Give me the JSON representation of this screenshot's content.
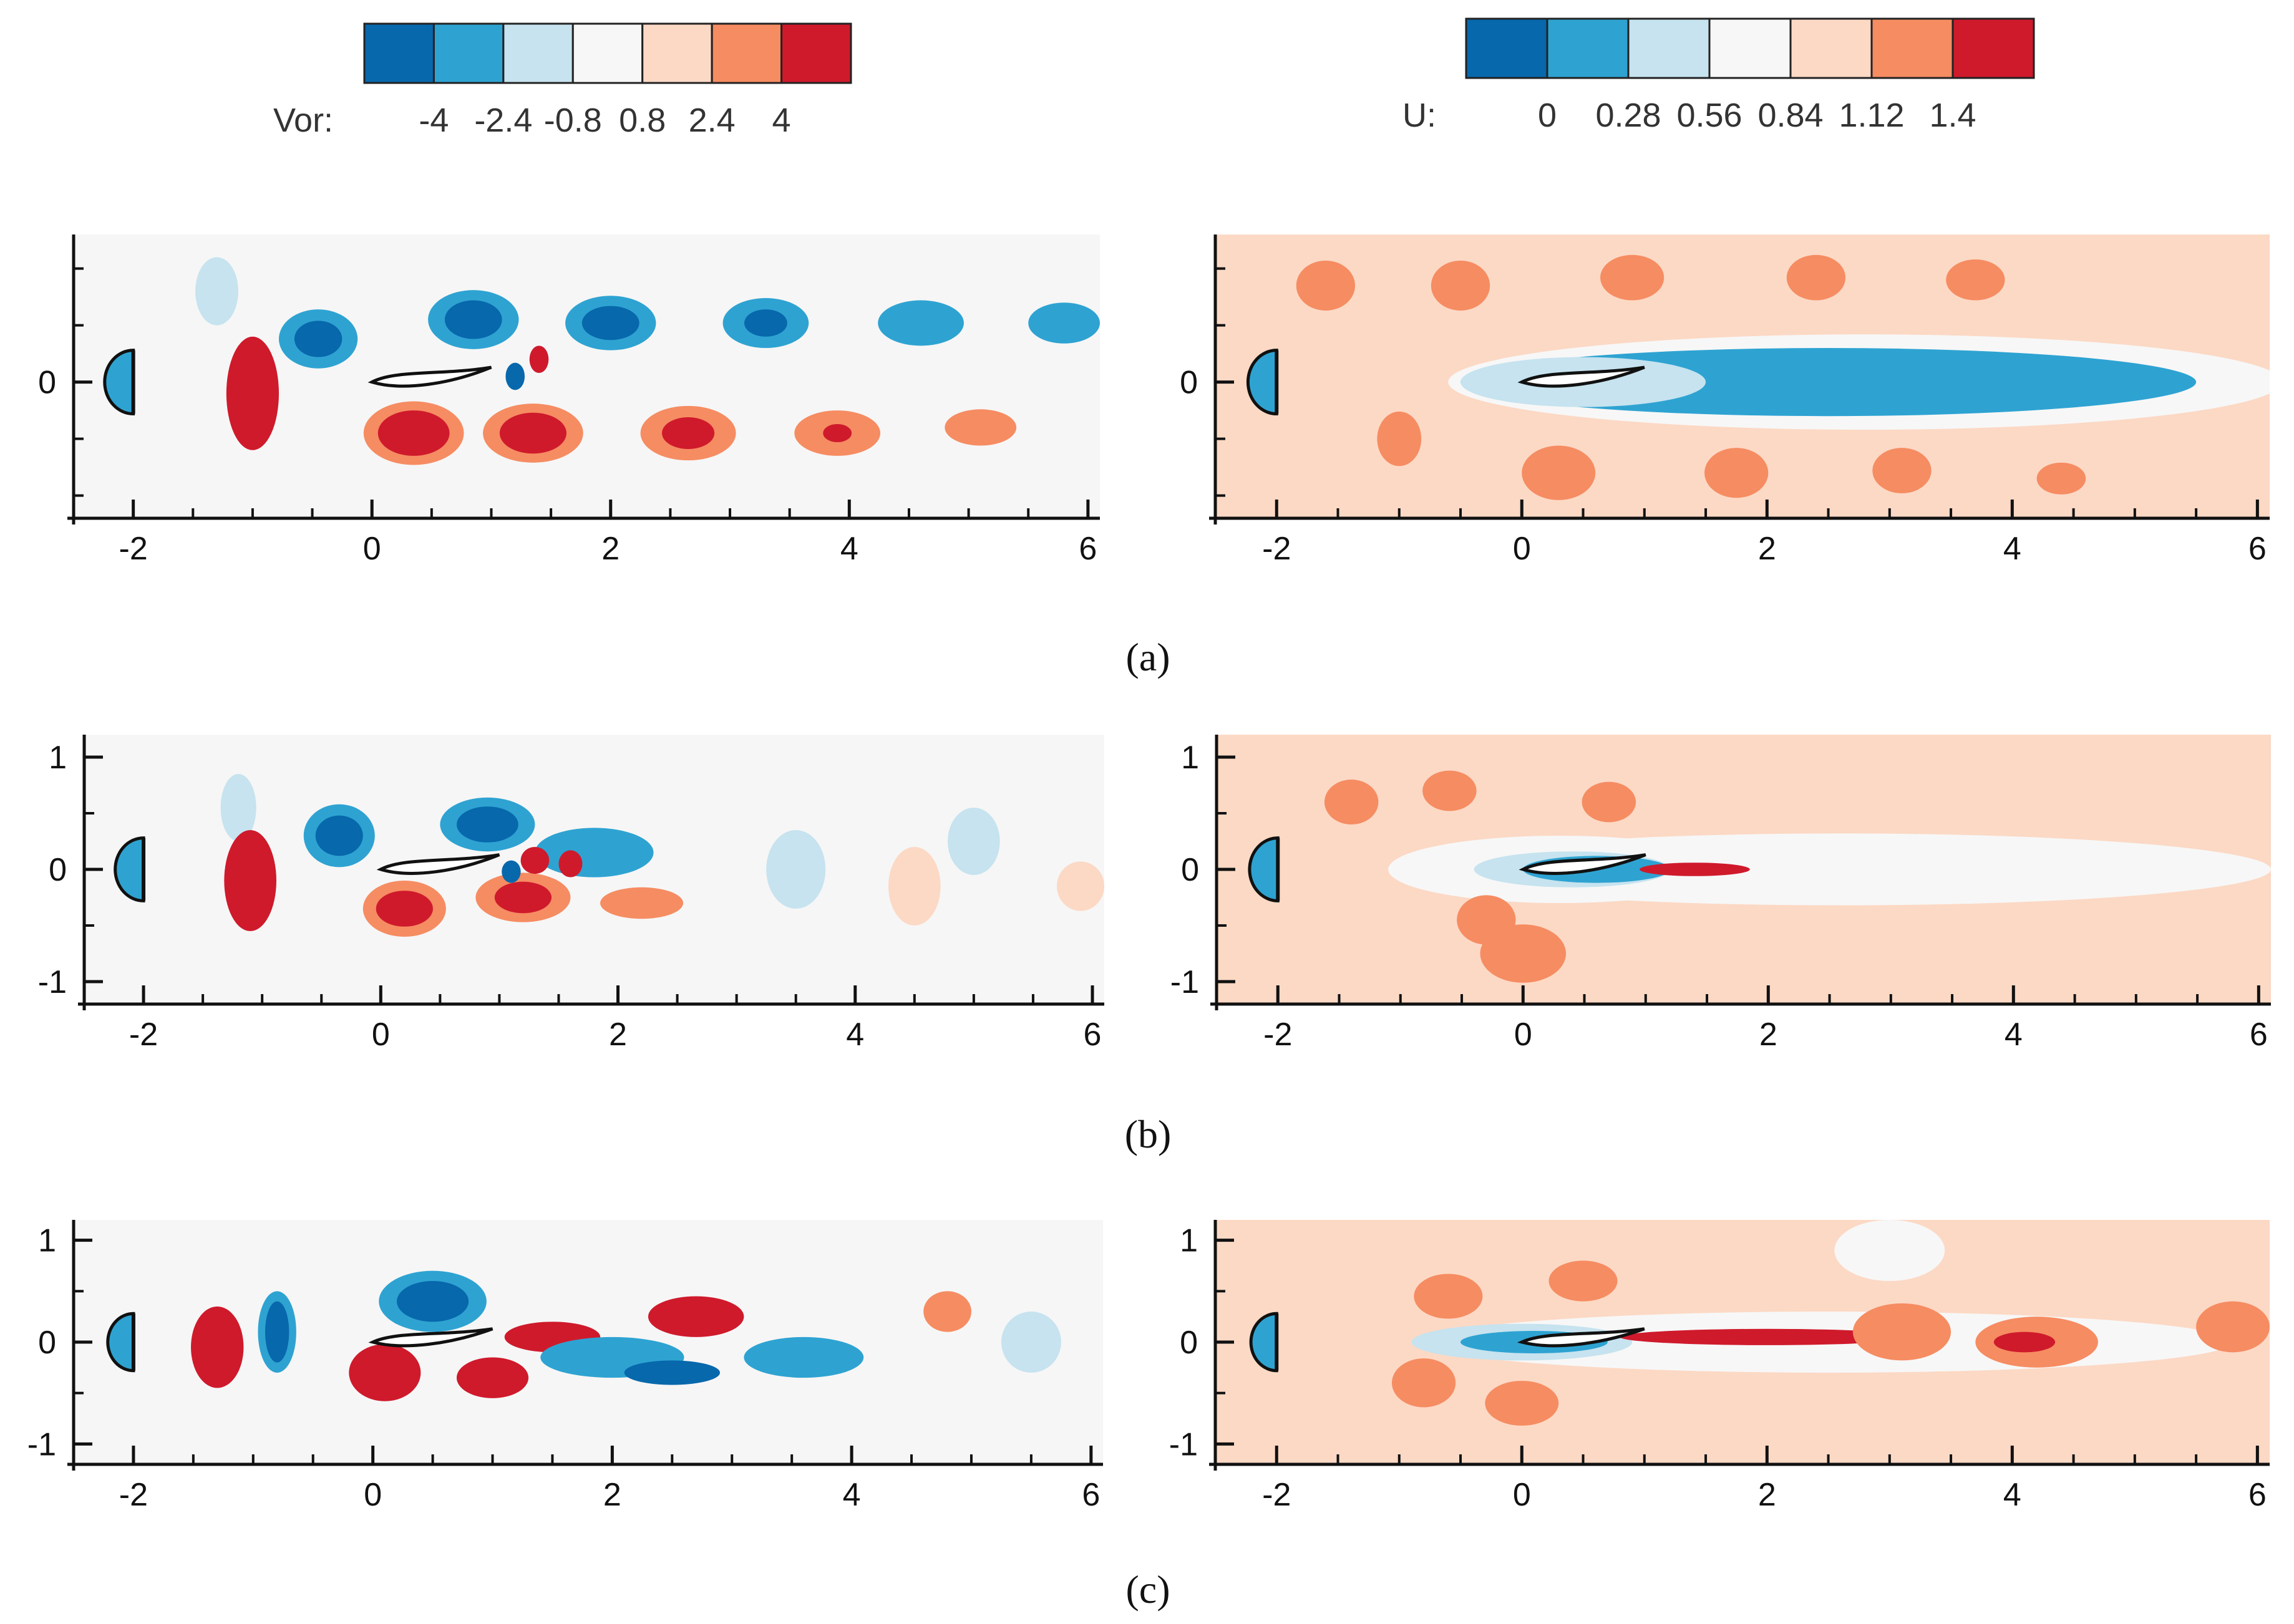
{
  "chart_data": [
    {
      "type": "heatmap",
      "id": "a-vor",
      "panel": "(a)",
      "field": "Vor",
      "xticks": [
        -2,
        0,
        2,
        4,
        6
      ],
      "yticks": [
        0
      ],
      "xlim": [
        -2.5,
        6.1
      ],
      "ylim": [
        -1.2,
        1.3
      ],
      "bg": "#f6f6f6",
      "blobs": [
        [
          -1.3,
          0.8,
          0.18,
          0.3,
          2
        ],
        [
          -0.45,
          0.38,
          0.33,
          0.26,
          1
        ],
        [
          -0.45,
          0.38,
          0.2,
          0.16,
          0
        ],
        [
          0.85,
          0.55,
          0.38,
          0.26,
          1
        ],
        [
          0.85,
          0.55,
          0.24,
          0.17,
          0
        ],
        [
          2.0,
          0.52,
          0.38,
          0.24,
          1
        ],
        [
          2.0,
          0.52,
          0.24,
          0.15,
          0
        ],
        [
          3.3,
          0.52,
          0.36,
          0.22,
          1
        ],
        [
          3.3,
          0.52,
          0.18,
          0.12,
          0
        ],
        [
          4.6,
          0.52,
          0.36,
          0.2,
          1
        ],
        [
          4.6,
          0.52,
          0.15,
          0.1,
          1
        ],
        [
          5.8,
          0.52,
          0.3,
          0.18,
          1
        ],
        [
          -1.0,
          -0.1,
          0.22,
          0.5,
          6
        ],
        [
          0.35,
          -0.45,
          0.42,
          0.28,
          5
        ],
        [
          0.35,
          -0.45,
          0.3,
          0.2,
          6
        ],
        [
          1.35,
          -0.45,
          0.42,
          0.26,
          5
        ],
        [
          1.35,
          -0.45,
          0.28,
          0.18,
          6
        ],
        [
          2.65,
          -0.45,
          0.4,
          0.24,
          5
        ],
        [
          2.65,
          -0.45,
          0.22,
          0.14,
          6
        ],
        [
          3.9,
          -0.45,
          0.36,
          0.2,
          5
        ],
        [
          3.9,
          -0.45,
          0.12,
          0.08,
          6
        ],
        [
          5.1,
          -0.4,
          0.3,
          0.16,
          5
        ],
        [
          1.4,
          0.2,
          0.08,
          0.12,
          6
        ],
        [
          1.2,
          0.05,
          0.08,
          0.12,
          0
        ]
      ]
    },
    {
      "type": "heatmap",
      "id": "a-u",
      "panel": "(a)",
      "field": "U",
      "xticks": [
        -2,
        0,
        2,
        4,
        6
      ],
      "yticks": [
        0
      ],
      "xlim": [
        -2.5,
        6.1
      ],
      "ylim": [
        -1.2,
        1.3
      ],
      "bg": "#fcd9c5",
      "blobs": [
        [
          2.8,
          0.0,
          3.4,
          0.42,
          3
        ],
        [
          2.5,
          0.0,
          3.0,
          0.3,
          1
        ],
        [
          0.5,
          0.0,
          1.0,
          0.22,
          2
        ],
        [
          -1.6,
          0.85,
          0.24,
          0.22,
          5
        ],
        [
          -0.5,
          0.85,
          0.24,
          0.22,
          5
        ],
        [
          0.9,
          0.92,
          0.26,
          0.2,
          5
        ],
        [
          2.4,
          0.92,
          0.24,
          0.2,
          5
        ],
        [
          3.7,
          0.9,
          0.24,
          0.18,
          5
        ],
        [
          -1.0,
          -0.5,
          0.18,
          0.24,
          5
        ],
        [
          0.3,
          -0.8,
          0.3,
          0.24,
          5
        ],
        [
          1.75,
          -0.8,
          0.26,
          0.22,
          5
        ],
        [
          3.1,
          -0.78,
          0.24,
          0.2,
          5
        ],
        [
          4.4,
          -0.85,
          0.2,
          0.14,
          5
        ]
      ]
    },
    {
      "type": "heatmap",
      "id": "b-vor",
      "panel": "(b)",
      "field": "Vor",
      "xticks": [
        -2,
        0,
        2,
        4,
        6
      ],
      "yticks": [
        -1,
        0,
        1
      ],
      "xlim": [
        -2.5,
        6.1
      ],
      "ylim": [
        -1.2,
        1.2
      ],
      "bg": "#f6f6f6",
      "blobs": [
        [
          -1.2,
          0.55,
          0.15,
          0.3,
          2
        ],
        [
          -0.35,
          0.3,
          0.3,
          0.28,
          1
        ],
        [
          -0.35,
          0.3,
          0.2,
          0.18,
          0
        ],
        [
          0.9,
          0.4,
          0.4,
          0.24,
          1
        ],
        [
          0.9,
          0.4,
          0.26,
          0.16,
          0
        ],
        [
          1.8,
          0.15,
          0.5,
          0.22,
          1
        ],
        [
          -1.1,
          -0.1,
          0.22,
          0.45,
          6
        ],
        [
          0.2,
          -0.35,
          0.35,
          0.25,
          5
        ],
        [
          0.2,
          -0.35,
          0.24,
          0.16,
          6
        ],
        [
          1.2,
          -0.25,
          0.4,
          0.22,
          5
        ],
        [
          1.2,
          -0.25,
          0.24,
          0.14,
          6
        ],
        [
          2.2,
          -0.3,
          0.35,
          0.14,
          5
        ],
        [
          1.3,
          0.08,
          0.12,
          0.12,
          6
        ],
        [
          1.6,
          0.05,
          0.1,
          0.12,
          6
        ],
        [
          1.1,
          -0.02,
          0.08,
          0.1,
          0
        ],
        [
          3.5,
          0.0,
          0.25,
          0.35,
          2
        ],
        [
          4.5,
          -0.15,
          0.22,
          0.35,
          4
        ],
        [
          5.0,
          0.25,
          0.22,
          0.3,
          2
        ],
        [
          5.9,
          -0.15,
          0.2,
          0.22,
          4
        ]
      ]
    },
    {
      "type": "heatmap",
      "id": "b-u",
      "panel": "(b)",
      "field": "U",
      "xticks": [
        -2,
        0,
        2,
        4,
        6
      ],
      "yticks": [
        -1,
        0,
        1
      ],
      "xlim": [
        -2.5,
        6.1
      ],
      "ylim": [
        -1.2,
        1.2
      ],
      "bg": "#fcd9c5",
      "blobs": [
        [
          2.6,
          0.0,
          3.5,
          0.32,
          3
        ],
        [
          0.3,
          0.0,
          1.4,
          0.3,
          3
        ],
        [
          0.4,
          0.0,
          0.8,
          0.16,
          2
        ],
        [
          0.6,
          0.0,
          0.6,
          0.12,
          1
        ],
        [
          1.4,
          0.0,
          0.45,
          0.06,
          6
        ],
        [
          -1.4,
          0.6,
          0.22,
          0.2,
          5
        ],
        [
          -0.6,
          0.7,
          0.22,
          0.18,
          5
        ],
        [
          0.7,
          0.6,
          0.22,
          0.18,
          5
        ],
        [
          -0.3,
          -0.45,
          0.24,
          0.22,
          5
        ],
        [
          0.0,
          -0.75,
          0.35,
          0.26,
          5
        ]
      ]
    },
    {
      "type": "heatmap",
      "id": "c-vor",
      "panel": "(c)",
      "field": "Vor",
      "xticks": [
        -2,
        0,
        2,
        4,
        6
      ],
      "yticks": [
        -1,
        0,
        1
      ],
      "xlim": [
        -2.5,
        6.1
      ],
      "ylim": [
        -1.2,
        1.2
      ],
      "bg": "#f6f6f6",
      "blobs": [
        [
          -1.3,
          -0.05,
          0.22,
          0.4,
          6
        ],
        [
          -0.8,
          0.1,
          0.16,
          0.4,
          1
        ],
        [
          -0.8,
          0.1,
          0.1,
          0.3,
          0
        ],
        [
          0.5,
          0.4,
          0.45,
          0.3,
          1
        ],
        [
          0.5,
          0.4,
          0.3,
          0.2,
          0
        ],
        [
          1.5,
          0.05,
          0.4,
          0.15,
          6
        ],
        [
          2.7,
          0.25,
          0.4,
          0.2,
          6
        ],
        [
          0.1,
          -0.3,
          0.3,
          0.28,
          6
        ],
        [
          1.0,
          -0.35,
          0.3,
          0.2,
          6
        ],
        [
          2.0,
          -0.15,
          0.6,
          0.2,
          1
        ],
        [
          2.5,
          -0.3,
          0.4,
          0.12,
          0
        ],
        [
          3.6,
          -0.15,
          0.5,
          0.2,
          1
        ],
        [
          4.8,
          0.3,
          0.2,
          0.2,
          5
        ],
        [
          5.5,
          0.0,
          0.25,
          0.3,
          2
        ]
      ]
    },
    {
      "type": "heatmap",
      "id": "c-u",
      "panel": "(c)",
      "field": "U",
      "xticks": [
        -2,
        0,
        2,
        4,
        6
      ],
      "yticks": [
        -1,
        0,
        1
      ],
      "xlim": [
        -2.5,
        6.1
      ],
      "ylim": [
        -1.2,
        1.2
      ],
      "bg": "#fcd9c5",
      "blobs": [
        [
          2.5,
          0.0,
          3.3,
          0.3,
          3
        ],
        [
          0.0,
          0.0,
          0.9,
          0.18,
          2
        ],
        [
          0.1,
          0.0,
          0.6,
          0.11,
          1
        ],
        [
          2.0,
          0.05,
          1.2,
          0.08,
          6
        ],
        [
          3.1,
          0.1,
          0.4,
          0.28,
          5
        ],
        [
          4.2,
          0.0,
          0.5,
          0.25,
          5
        ],
        [
          4.1,
          0.0,
          0.25,
          0.1,
          6
        ],
        [
          5.8,
          0.15,
          0.3,
          0.25,
          5
        ],
        [
          0.5,
          0.6,
          0.28,
          0.2,
          5
        ],
        [
          -0.6,
          0.45,
          0.28,
          0.22,
          5
        ],
        [
          -0.8,
          -0.4,
          0.26,
          0.24,
          5
        ],
        [
          0.0,
          -0.6,
          0.3,
          0.22,
          5
        ],
        [
          3.0,
          0.9,
          0.45,
          0.3,
          3
        ]
      ]
    }
  ],
  "legends": {
    "vor": {
      "label": "Vor:",
      "ticks": [
        "-4",
        "-2.4",
        "-0.8",
        "0.8",
        "2.4",
        "4"
      ],
      "colors": [
        "#0868ac",
        "#2ea3d2",
        "#c6e3ef",
        "#f7f7f7",
        "#fcd9c5",
        "#f68c62",
        "#cf1a2c"
      ]
    },
    "u": {
      "label": "U:",
      "ticks": [
        "0",
        "0.28",
        "0.56",
        "0.84",
        "1.12",
        "1.4"
      ],
      "colors": [
        "#0868ac",
        "#2ea3d2",
        "#c6e3ef",
        "#f7f7f7",
        "#fcd9c5",
        "#f68c62",
        "#cf1a2c"
      ]
    }
  },
  "captions": [
    "(a)",
    "(b)",
    "(c)"
  ]
}
